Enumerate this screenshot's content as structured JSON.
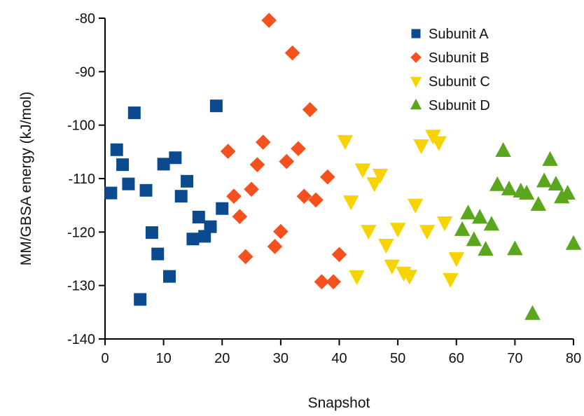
{
  "chart_data": {
    "type": "scatter",
    "title": "",
    "xlabel": "Snapshot",
    "ylabel": "MM/GBSA energy (kJ/mol)",
    "xlim": [
      0,
      80
    ],
    "ylim": [
      -140,
      -80
    ],
    "xticks": [
      0,
      10,
      20,
      30,
      40,
      50,
      60,
      70,
      80
    ],
    "yticks": [
      -80,
      -90,
      -100,
      -110,
      -120,
      -130,
      -140
    ],
    "grid": false,
    "legend_position": "top-right",
    "series": [
      {
        "name": "Subunit A",
        "marker": "square",
        "color": "#0b4a8f",
        "points": [
          [
            1,
            -112.7
          ],
          [
            2,
            -104.6
          ],
          [
            3,
            -107.4
          ],
          [
            4,
            -111.0
          ],
          [
            5,
            -97.7
          ],
          [
            6,
            -132.6
          ],
          [
            7,
            -112.2
          ],
          [
            8,
            -120.1
          ],
          [
            9,
            -124.1
          ],
          [
            10,
            -107.3
          ],
          [
            11,
            -128.3
          ],
          [
            12,
            -106.1
          ],
          [
            13,
            -113.3
          ],
          [
            14,
            -110.5
          ],
          [
            15,
            -121.3
          ],
          [
            16,
            -117.2
          ],
          [
            17,
            -120.8
          ],
          [
            18,
            -119.0
          ],
          [
            19,
            -96.4
          ],
          [
            20,
            -115.6
          ]
        ]
      },
      {
        "name": "Subunit B",
        "marker": "diamond",
        "color": "#f4511e",
        "points": [
          [
            21,
            -104.9
          ],
          [
            22,
            -113.3
          ],
          [
            23,
            -117.1
          ],
          [
            24,
            -124.6
          ],
          [
            25,
            -112.0
          ],
          [
            26,
            -107.4
          ],
          [
            27,
            -103.2
          ],
          [
            28,
            -80.4
          ],
          [
            29,
            -122.7
          ],
          [
            30,
            -119.9
          ],
          [
            31,
            -106.8
          ],
          [
            32,
            -86.5
          ],
          [
            33,
            -104.4
          ],
          [
            34,
            -113.3
          ],
          [
            35,
            -97.1
          ],
          [
            36,
            -114.0
          ],
          [
            37,
            -129.3
          ],
          [
            38,
            -109.7
          ],
          [
            39,
            -129.3
          ],
          [
            40,
            -124.2
          ]
        ]
      },
      {
        "name": "Subunit C",
        "marker": "triangle-down",
        "color": "#f7d400",
        "points": [
          [
            41,
            -103.0
          ],
          [
            42,
            -114.3
          ],
          [
            43,
            -128.3
          ],
          [
            44,
            -108.3
          ],
          [
            45,
            -119.8
          ],
          [
            46,
            -110.9
          ],
          [
            47,
            -109.3
          ],
          [
            48,
            -122.4
          ],
          [
            49,
            -126.3
          ],
          [
            50,
            -119.4
          ],
          [
            51,
            -127.6
          ],
          [
            52,
            -128.2
          ],
          [
            53,
            -114.9
          ],
          [
            54,
            -103.8
          ],
          [
            55,
            -119.8
          ],
          [
            56,
            -102.0
          ],
          [
            57,
            -103.2
          ],
          [
            58,
            -118.2
          ],
          [
            59,
            -128.8
          ],
          [
            60,
            -124.9
          ]
        ]
      },
      {
        "name": "Subunit D",
        "marker": "triangle-up",
        "color": "#5aa61f",
        "points": [
          [
            61,
            -119.6
          ],
          [
            62,
            -116.5
          ],
          [
            63,
            -121.5
          ],
          [
            64,
            -117.3
          ],
          [
            65,
            -123.3
          ],
          [
            66,
            -118.6
          ],
          [
            67,
            -111.2
          ],
          [
            68,
            -104.8
          ],
          [
            69,
            -112.0
          ],
          [
            70,
            -123.2
          ],
          [
            71,
            -112.4
          ],
          [
            72,
            -112.8
          ],
          [
            73,
            -135.3
          ],
          [
            74,
            -114.9
          ],
          [
            75,
            -110.5
          ],
          [
            76,
            -106.5
          ],
          [
            77,
            -111.1
          ],
          [
            78,
            -113.5
          ],
          [
            79,
            -112.8
          ],
          [
            80,
            -122.2
          ]
        ]
      }
    ]
  }
}
